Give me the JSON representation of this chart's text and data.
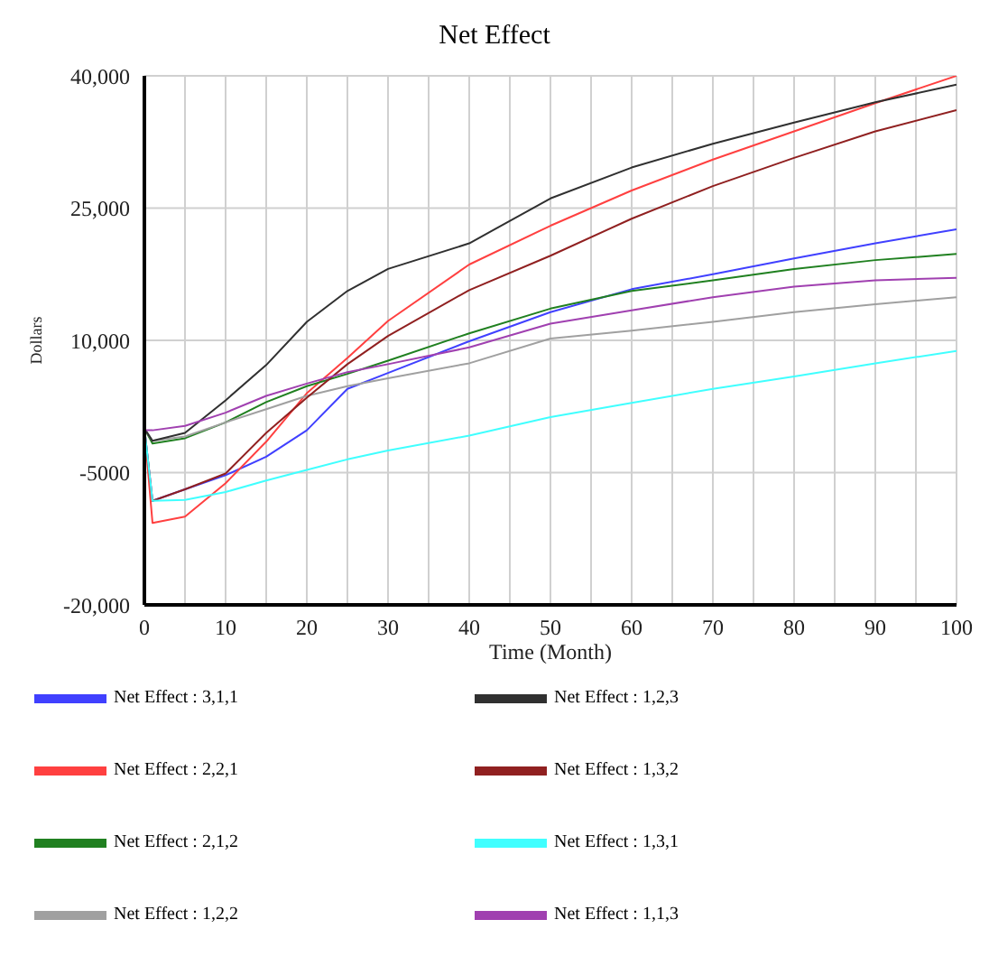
{
  "chart_data": {
    "type": "line",
    "title": "Net Effect",
    "xlabel": "Time (Month)",
    "ylabel": "Dollars",
    "x": [
      0,
      1,
      5,
      10,
      15,
      20,
      25,
      30,
      40,
      50,
      60,
      70,
      80,
      90,
      100
    ],
    "xlim": [
      0,
      100
    ],
    "xticks": [
      0,
      {
        "value": 5,
        "label": null
      },
      10,
      {
        "value": 15,
        "label": null
      },
      20,
      {
        "value": 25,
        "label": null
      },
      30,
      {
        "value": 35,
        "label": null
      },
      40,
      {
        "value": 45,
        "label": null
      },
      50,
      {
        "value": 55,
        "label": null
      },
      60,
      {
        "value": 65,
        "label": null
      },
      70,
      {
        "value": 75,
        "label": null
      },
      80,
      {
        "value": 85,
        "label": null
      },
      90,
      {
        "value": 95,
        "label": null
      },
      100
    ],
    "ylim": [
      -20000,
      40000
    ],
    "yticks": [
      {
        "value": -20000,
        "label": "-20,000"
      },
      -5000,
      {
        "value": 10000,
        "label": "10,000"
      },
      {
        "value": 25000,
        "label": "25,000"
      },
      {
        "value": 40000,
        "label": "40,000"
      }
    ],
    "grid": true,
    "legend": "bottom",
    "marker": "none",
    "line_style": "solid",
    "series": [
      {
        "name": "Net Effect : 3,1,1",
        "color": "#4040ff",
        "values": [
          0,
          -8200,
          -6900,
          -5300,
          -3200,
          -200,
          4500,
          6300,
          9900,
          13200,
          15800,
          17500,
          19300,
          21000,
          22600
        ]
      },
      {
        "name": "Net Effect : 2,2,1",
        "color": "#ff4040",
        "values": [
          0,
          -10700,
          -10000,
          -6200,
          -1500,
          4000,
          8000,
          12200,
          18600,
          23000,
          27000,
          30500,
          33700,
          36900,
          40000
        ]
      },
      {
        "name": "Net Effect : 2,1,2",
        "color": "#208020",
        "values": [
          0,
          -1700,
          -1100,
          700,
          3000,
          4800,
          6200,
          7700,
          10800,
          13600,
          15600,
          16800,
          18100,
          19100,
          19800
        ]
      },
      {
        "name": "Net Effect : 1,2,2",
        "color": "#a0a0a0",
        "values": [
          0,
          -1400,
          -900,
          700,
          2200,
          3700,
          4800,
          5700,
          7400,
          10200,
          11100,
          12100,
          13200,
          14100,
          14900
        ]
      },
      {
        "name": "Net Effect : 1,2,3",
        "color": "#303030",
        "values": [
          0,
          -1400,
          -500,
          3200,
          7200,
          12100,
          15600,
          18100,
          21000,
          26100,
          29600,
          32300,
          34700,
          37000,
          39000
        ]
      },
      {
        "name": "Net Effect : 1,3,2",
        "color": "#902020",
        "values": [
          0,
          -8200,
          -6900,
          -5100,
          -500,
          3500,
          7300,
          10500,
          15700,
          19600,
          23800,
          27500,
          30700,
          33700,
          36100
        ]
      },
      {
        "name": "Net Effect : 1,3,1",
        "color": "#40ffff",
        "values": [
          0,
          -8200,
          -8100,
          -7200,
          -5900,
          -4700,
          -3500,
          -2500,
          -800,
          1300,
          2900,
          4500,
          5900,
          7400,
          8800
        ]
      },
      {
        "name": "Net Effect : 1,1,3",
        "color": "#a040b0",
        "values": [
          -200,
          -200,
          300,
          1800,
          3700,
          5100,
          6400,
          7300,
          9200,
          11900,
          13400,
          14900,
          16100,
          16800,
          17100
        ]
      }
    ]
  }
}
